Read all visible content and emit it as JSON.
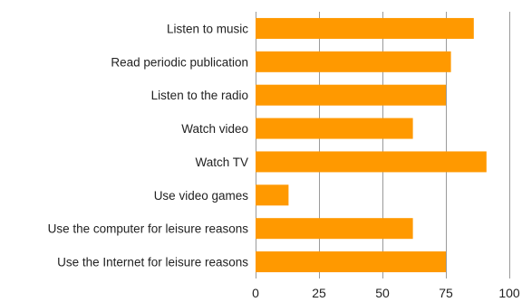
{
  "chart_data": {
    "type": "bar",
    "orientation": "horizontal",
    "categories": [
      "Listen to music",
      "Read periodic publication",
      "Listen to the radio",
      "Watch video",
      "Watch TV",
      "Use video games",
      "Use the computer for leisure reasons",
      "Use the Internet for leisure reasons"
    ],
    "values": [
      86,
      77,
      75,
      62,
      91,
      13,
      62,
      75
    ],
    "xlim": [
      0,
      100
    ],
    "xticks": [
      0,
      25,
      50,
      75,
      100
    ],
    "grid": true,
    "bar_color": "#FF9900",
    "title": "",
    "xlabel": "",
    "ylabel": ""
  }
}
